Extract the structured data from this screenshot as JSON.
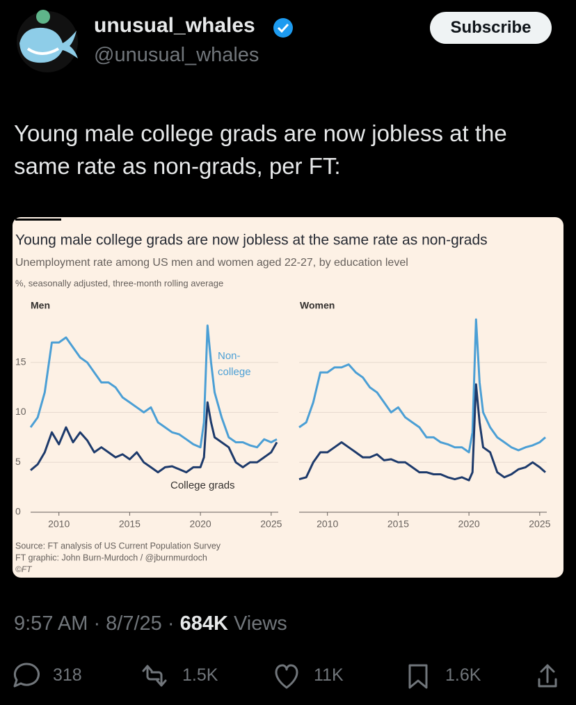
{
  "tweet": {
    "name": "unusual_whales",
    "handle": "@unusual_whales",
    "button": "Subscribe",
    "text": "Young male college grads are now jobless at the same rate as non-grads, per FT:",
    "timestamp": "9:57 AM · 8/7/25 ·",
    "views": "684K",
    "views_label": "Views",
    "stats": {
      "replies": "318",
      "reposts": "1.5K",
      "likes": "11K",
      "bookmarks": "1.6K"
    }
  },
  "figure": {
    "title": "Young male college grads are now jobless at the same rate as non-grads",
    "subtitle": "Unemployment rate among US men and women aged 22-27, by education level",
    "note": "%, seasonally adjusted, three-month rolling average",
    "source": "Source: FT analysis of US Current Population Survey",
    "credit": "FT graphic: John Burn-Murdoch / @jburnmurdoch",
    "copyright": "©FT"
  },
  "chart_data": [
    {
      "type": "line",
      "title": "Men",
      "x": [
        2008,
        2008.5,
        2009,
        2009.25,
        2009.5,
        2010,
        2010.5,
        2011,
        2011.5,
        2012,
        2012.5,
        2013,
        2013.5,
        2014,
        2014.5,
        2015,
        2015.5,
        2016,
        2016.5,
        2017,
        2017.5,
        2018,
        2018.5,
        2019,
        2019.5,
        2020,
        2020.25,
        2020.5,
        2020.75,
        2021,
        2021.5,
        2022,
        2022.5,
        2023,
        2023.5,
        2024,
        2024.5,
        2025,
        2025.4
      ],
      "series": [
        {
          "name": "Non-college",
          "color": "#4b9fd5",
          "values": [
            8.5,
            9.5,
            12,
            14.5,
            17,
            17,
            17.5,
            16.5,
            15.5,
            15,
            14,
            13,
            13,
            12.5,
            11.5,
            11,
            10.5,
            10,
            10.5,
            9,
            8.5,
            8,
            7.8,
            7.3,
            6.8,
            6.5,
            9,
            18.7,
            15,
            12,
            9.5,
            7.5,
            7,
            7,
            6.7,
            6.5,
            7.3,
            7,
            7.3
          ]
        },
        {
          "name": "College grads",
          "color": "#1d3a6b",
          "values": [
            4.2,
            4.8,
            6,
            7,
            8,
            6.8,
            8.5,
            7,
            8,
            7.2,
            6,
            6.5,
            6,
            5.5,
            5.8,
            5.3,
            6,
            5,
            4.5,
            4,
            4.5,
            4.6,
            4.3,
            4,
            4.5,
            4.5,
            5.5,
            11,
            9,
            7.5,
            7,
            6.5,
            5,
            4.5,
            5,
            5,
            5.5,
            6,
            7
          ]
        }
      ],
      "xlim": [
        2008,
        2025.5
      ],
      "xticks": [
        2010,
        2015,
        2020,
        2025
      ],
      "ylim": [
        0,
        20
      ],
      "yticks": [
        0,
        5,
        10,
        15
      ],
      "grid": true
    },
    {
      "type": "line",
      "title": "Women",
      "x": [
        2008,
        2008.5,
        2009,
        2009.25,
        2009.5,
        2010,
        2010.5,
        2011,
        2011.5,
        2012,
        2012.5,
        2013,
        2013.5,
        2014,
        2014.5,
        2015,
        2015.5,
        2016,
        2016.5,
        2017,
        2017.5,
        2018,
        2018.5,
        2019,
        2019.5,
        2020,
        2020.25,
        2020.5,
        2020.75,
        2021,
        2021.5,
        2022,
        2022.5,
        2023,
        2023.5,
        2024,
        2024.5,
        2025,
        2025.4
      ],
      "series": [
        {
          "color": "#4b9fd5",
          "values": [
            8.5,
            9,
            11,
            12.5,
            14,
            14,
            14.5,
            14.5,
            14.8,
            14,
            13.5,
            12.5,
            12,
            11,
            10,
            10.5,
            9.5,
            9,
            8.5,
            7.5,
            7.5,
            7,
            6.8,
            6.5,
            6.5,
            6,
            8,
            19.3,
            13,
            10,
            8.5,
            7.5,
            7,
            6.5,
            6.2,
            6.5,
            6.7,
            7,
            7.5
          ]
        },
        {
          "color": "#1d3a6b",
          "values": [
            3.3,
            3.5,
            5,
            5.5,
            6,
            6,
            6.5,
            7,
            6.5,
            6,
            5.5,
            5.5,
            5.8,
            5.2,
            5.3,
            5,
            5,
            4.5,
            4,
            4,
            3.8,
            3.8,
            3.5,
            3.3,
            3.5,
            3.2,
            4,
            12.8,
            9,
            6.5,
            6,
            4,
            3.5,
            3.8,
            4.3,
            4.5,
            5,
            4.5,
            4
          ]
        }
      ],
      "xlim": [
        2008,
        2025.5
      ],
      "xticks": [
        2010,
        2015,
        2020,
        2025
      ],
      "ylim": [
        0,
        20
      ],
      "yticks": [
        0,
        5,
        10,
        15
      ],
      "grid": true,
      "ytick_labels": false
    }
  ]
}
